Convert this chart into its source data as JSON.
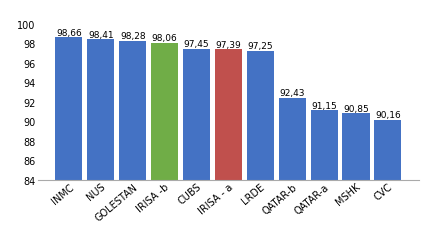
{
  "categories": [
    "INMC",
    "NUS",
    "GOLESTAN",
    "IRISA -b",
    "CUBS",
    "IRISA - a",
    "LRDE",
    "QATAR-b",
    "QATAR-a",
    "MSHK",
    "CVC"
  ],
  "values": [
    98.66,
    98.41,
    98.28,
    98.06,
    97.45,
    97.39,
    97.25,
    92.43,
    91.15,
    90.85,
    90.16
  ],
  "bar_colors": [
    "#4472C4",
    "#4472C4",
    "#4472C4",
    "#70AD47",
    "#4472C4",
    "#C0504D",
    "#4472C4",
    "#4472C4",
    "#4472C4",
    "#4472C4",
    "#4472C4"
  ],
  "labels": [
    "98,66",
    "98,41",
    "98,28",
    "98,06",
    "97,45",
    "97,39",
    "97,25",
    "92,43",
    "91,15",
    "90,85",
    "90,16"
  ],
  "ylim": [
    84,
    100.5
  ],
  "yticks": [
    84,
    86,
    88,
    90,
    92,
    94,
    96,
    98,
    100
  ],
  "background_color": "#FFFFFF",
  "label_fontsize": 6.5,
  "tick_fontsize": 7.0,
  "bar_width": 0.85,
  "spine_color": "#AAAAAA"
}
